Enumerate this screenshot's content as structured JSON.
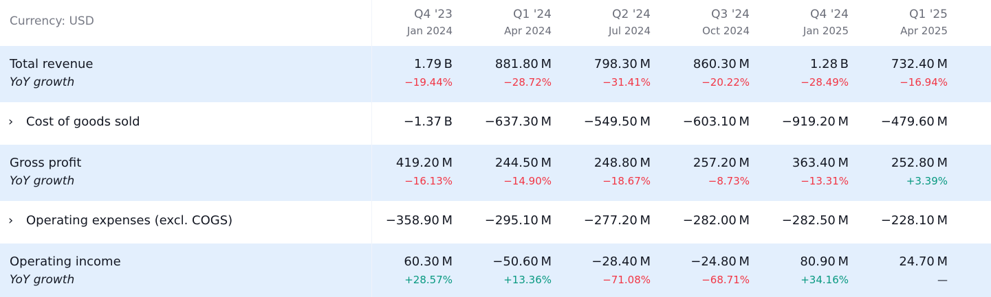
{
  "header": {
    "currency_label": "Currency: USD",
    "periods": [
      {
        "quarter": "Q4 '23",
        "date": "Jan 2024"
      },
      {
        "quarter": "Q1 '24",
        "date": "Apr 2024"
      },
      {
        "quarter": "Q2 '24",
        "date": "Jul 2024"
      },
      {
        "quarter": "Q3 '24",
        "date": "Oct 2024"
      },
      {
        "quarter": "Q4 '24",
        "date": "Jan 2025"
      },
      {
        "quarter": "Q1 '25",
        "date": "Apr 2025"
      }
    ]
  },
  "rows": {
    "total_revenue": {
      "label": "Total revenue",
      "growth_label": "YoY growth",
      "values": [
        "1.79 B",
        "881.80 M",
        "798.30 M",
        "860.30 M",
        "1.28 B",
        "732.40 M"
      ],
      "growth": [
        "−19.44%",
        "−28.72%",
        "−31.41%",
        "−20.22%",
        "−28.49%",
        "−16.94%"
      ]
    },
    "cogs": {
      "expander": "›",
      "label": "Cost of goods sold",
      "values": [
        "−1.37 B",
        "−637.30 M",
        "−549.50 M",
        "−603.10 M",
        "−919.20 M",
        "−479.60 M"
      ]
    },
    "gross_profit": {
      "label": "Gross profit",
      "growth_label": "YoY growth",
      "values": [
        "419.20 M",
        "244.50 M",
        "248.80 M",
        "257.20 M",
        "363.40 M",
        "252.80 M"
      ],
      "growth": [
        "−16.13%",
        "−14.90%",
        "−18.67%",
        "−8.73%",
        "−13.31%",
        "+3.39%"
      ]
    },
    "opex": {
      "expander": "›",
      "label": "Operating expenses (excl. COGS)",
      "values": [
        "−358.90 M",
        "−295.10 M",
        "−277.20 M",
        "−282.00 M",
        "−282.50 M",
        "−228.10 M"
      ]
    },
    "operating_income": {
      "label": "Operating income",
      "growth_label": "YoY growth",
      "values": [
        "60.30 M",
        "−50.60 M",
        "−28.40 M",
        "−24.80 M",
        "80.90 M",
        "24.70 M"
      ],
      "growth": [
        "+28.57%",
        "+13.36%",
        "−71.08%",
        "−68.71%",
        "+34.16%",
        "—"
      ]
    }
  },
  "colors": {
    "negative": "#f23645",
    "positive": "#089981",
    "highlight_row": "#e3effd"
  }
}
